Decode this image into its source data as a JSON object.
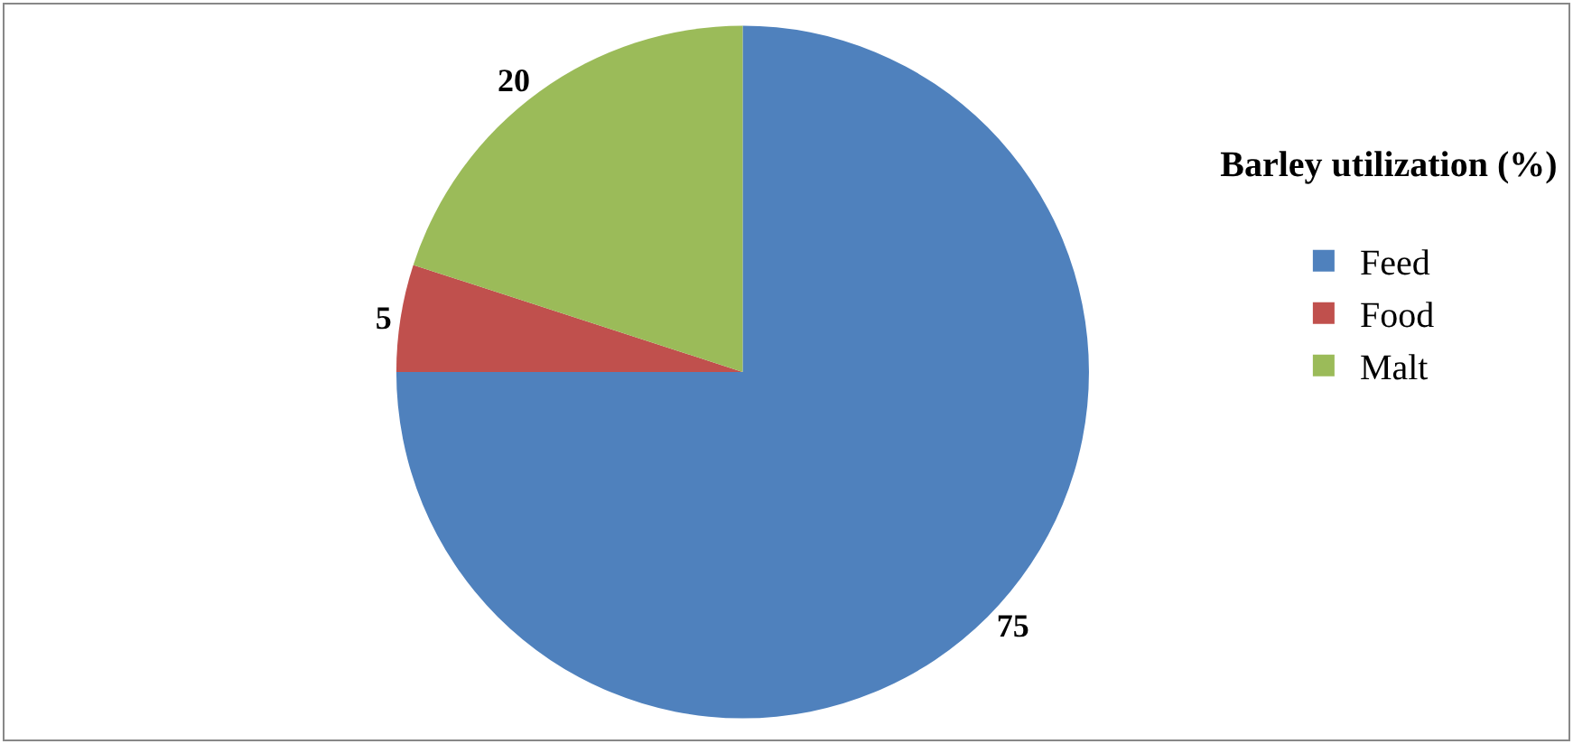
{
  "chart_data": {
    "type": "pie",
    "title": "Barley utilization (%)",
    "categories": [
      "Feed",
      "Food",
      "Malt"
    ],
    "values": [
      75,
      5,
      20
    ],
    "colors": [
      "#4f81bd",
      "#c0504d",
      "#9bbb59"
    ],
    "data_labels": true,
    "legend": "right"
  }
}
